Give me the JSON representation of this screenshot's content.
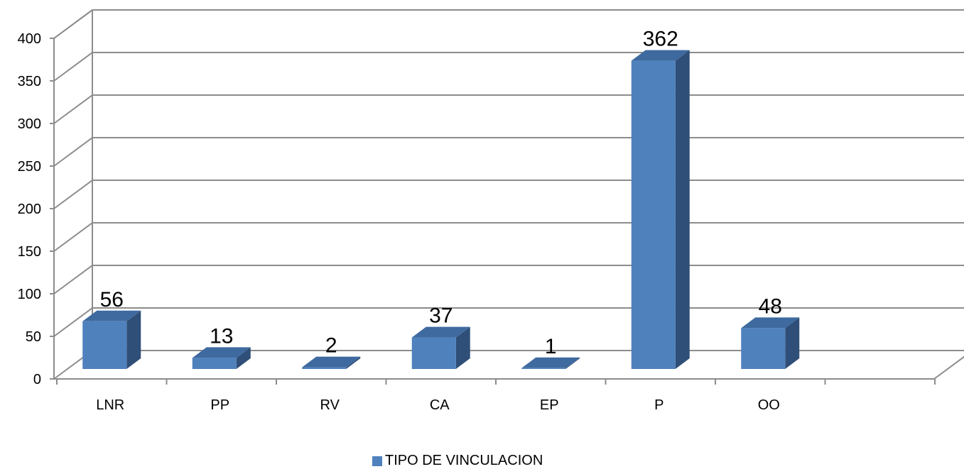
{
  "chart_data": {
    "type": "bar",
    "categories": [
      "LNR",
      "PP",
      "RV",
      "CA",
      "EP",
      "P",
      "OO"
    ],
    "series": [
      {
        "name": "TIPO DE VINCULACION",
        "values": [
          56,
          13,
          2,
          37,
          1,
          362,
          48
        ]
      }
    ],
    "ylim": [
      0,
      400
    ],
    "yticks": [
      0,
      50,
      100,
      150,
      200,
      250,
      300,
      350,
      400
    ],
    "grid": true,
    "legend": "bottom-center",
    "colors": {
      "bar_front": "#4f81bd",
      "bar_side": "#2f4f78",
      "bar_top": "#3e6a9f",
      "grid": "#8c8c8c"
    }
  }
}
